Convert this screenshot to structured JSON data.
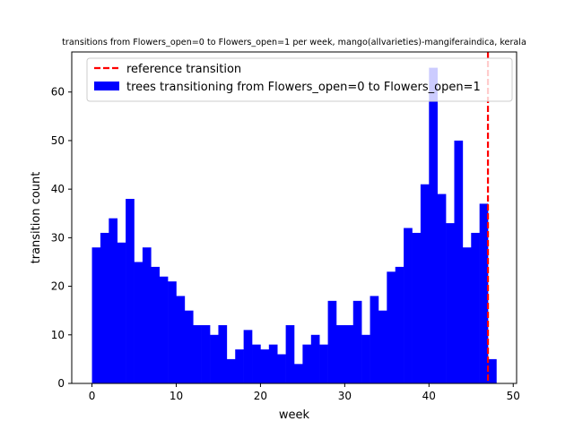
{
  "chart_data": {
    "type": "bar",
    "title": "transitions from Flowers_open=0 to Flowers_open=1 per week, mango(allvarieties)-mangiferaindica, kerala",
    "xlabel": "week",
    "ylabel": "transition count",
    "xlim": [
      -2.4,
      50.4
    ],
    "ylim": [
      0,
      68.25
    ],
    "xticks": [
      0,
      10,
      20,
      30,
      40,
      50
    ],
    "yticks": [
      0,
      10,
      20,
      30,
      40,
      50,
      60
    ],
    "bin_width": 1,
    "categories": [
      0,
      1,
      2,
      3,
      4,
      5,
      6,
      7,
      8,
      9,
      10,
      11,
      12,
      13,
      14,
      15,
      16,
      17,
      18,
      19,
      20,
      21,
      22,
      23,
      24,
      25,
      26,
      27,
      28,
      29,
      30,
      31,
      32,
      33,
      34,
      35,
      36,
      37,
      38,
      39,
      40,
      41,
      42,
      43,
      44,
      45,
      46,
      47
    ],
    "series": [
      {
        "name": "trees transitioning from Flowers_open=0 to Flowers_open=1",
        "color": "#0000ff",
        "values": [
          28,
          31,
          34,
          29,
          38,
          25,
          28,
          24,
          22,
          21,
          18,
          15,
          12,
          12,
          10,
          12,
          5,
          7,
          11,
          8,
          7,
          8,
          6,
          12,
          4,
          8,
          10,
          8,
          17,
          12,
          12,
          17,
          10,
          18,
          15,
          23,
          24,
          32,
          31,
          41,
          65,
          39,
          33,
          50,
          28,
          31,
          37,
          5
        ]
      }
    ],
    "reference_line": {
      "name": "reference transition",
      "x": 47,
      "color": "#ff0000",
      "style": "dashed"
    },
    "legend_position": "top-right",
    "grid": false
  }
}
